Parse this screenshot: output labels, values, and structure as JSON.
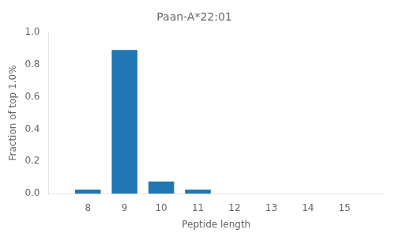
{
  "chart_data": {
    "type": "bar",
    "title": "Paan-A*22:01",
    "xlabel": "Peptide length",
    "ylabel": "Fraction of top 1.0%",
    "x": [
      8,
      9,
      10,
      11,
      12,
      13,
      14,
      15
    ],
    "values": [
      0.025,
      0.89,
      0.075,
      0.025,
      0.0,
      0.0,
      0.0,
      0.0
    ],
    "color": "#1f77b4",
    "xlim": [
      7.5,
      15.5
    ],
    "xticks": [
      8,
      9,
      10,
      11,
      12,
      13,
      14,
      15
    ],
    "ylim": [
      0.0,
      1.0
    ],
    "yticks": [
      {
        "value": 0.0,
        "label": "0.0"
      },
      {
        "value": 0.2,
        "label": "0.2"
      },
      {
        "value": 0.4,
        "label": "0.4"
      },
      {
        "value": 0.6,
        "label": "0.6"
      },
      {
        "value": 0.8,
        "label": "0.8"
      },
      {
        "value": 1.0,
        "label": "1.0"
      }
    ],
    "grid": false
  }
}
